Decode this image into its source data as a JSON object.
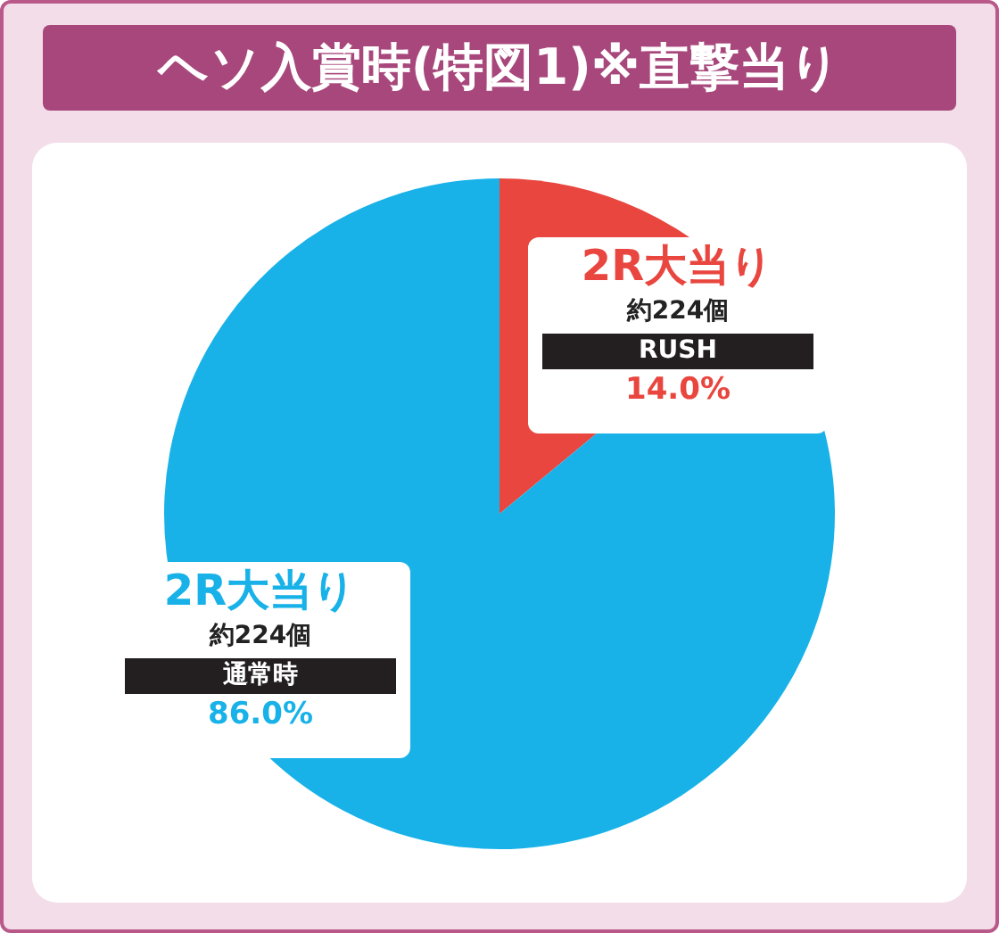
{
  "chart_data": {
    "type": "pie",
    "title": "ヘソ入賞時(特図1)※直撃当り",
    "categories": [
      "RUSH",
      "通常時"
    ],
    "values": [
      14.0,
      86.0
    ],
    "colors": [
      "#e8463e",
      "#18b2e8"
    ],
    "value_labels": [
      "14.0%",
      "86.0%"
    ],
    "annotations": [
      {
        "text": "2R大当り",
        "x": "RUSH"
      },
      {
        "text": "約224個",
        "x": "RUSH"
      },
      {
        "text": "2R大当り",
        "x": "通常時"
      },
      {
        "text": "約224個",
        "x": "通常時"
      }
    ],
    "legend": false
  }
}
